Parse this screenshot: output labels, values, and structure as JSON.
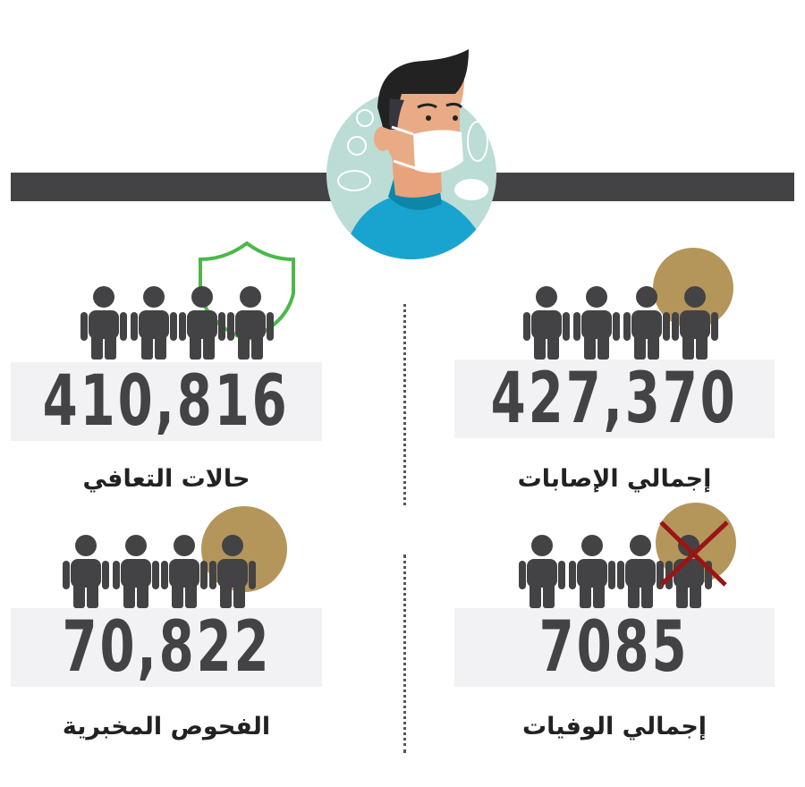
{
  "colors": {
    "bar": "#434345",
    "person": "#434345",
    "gold": "#b4965a",
    "green": "#4cb848",
    "cross": "#9b1414",
    "box": "#f2f2f4",
    "avatar_bg": "#bcdcd6",
    "shirt": "#19a4d0"
  },
  "stats": [
    {
      "id": "total-cases",
      "value": "427,370",
      "label": "إجمالي الإصابات",
      "badge": "gold-circle-icon"
    },
    {
      "id": "recoveries",
      "value": "410,816",
      "label": "حالات التعافي",
      "badge": "shield-icon"
    },
    {
      "id": "deaths",
      "value": "7085",
      "label": "إجمالي الوفيات",
      "badge": "cross-icon"
    },
    {
      "id": "lab-tests",
      "value": "70,822",
      "label": "الفحوص المخبرية",
      "badge": "gold-circle-icon"
    }
  ]
}
